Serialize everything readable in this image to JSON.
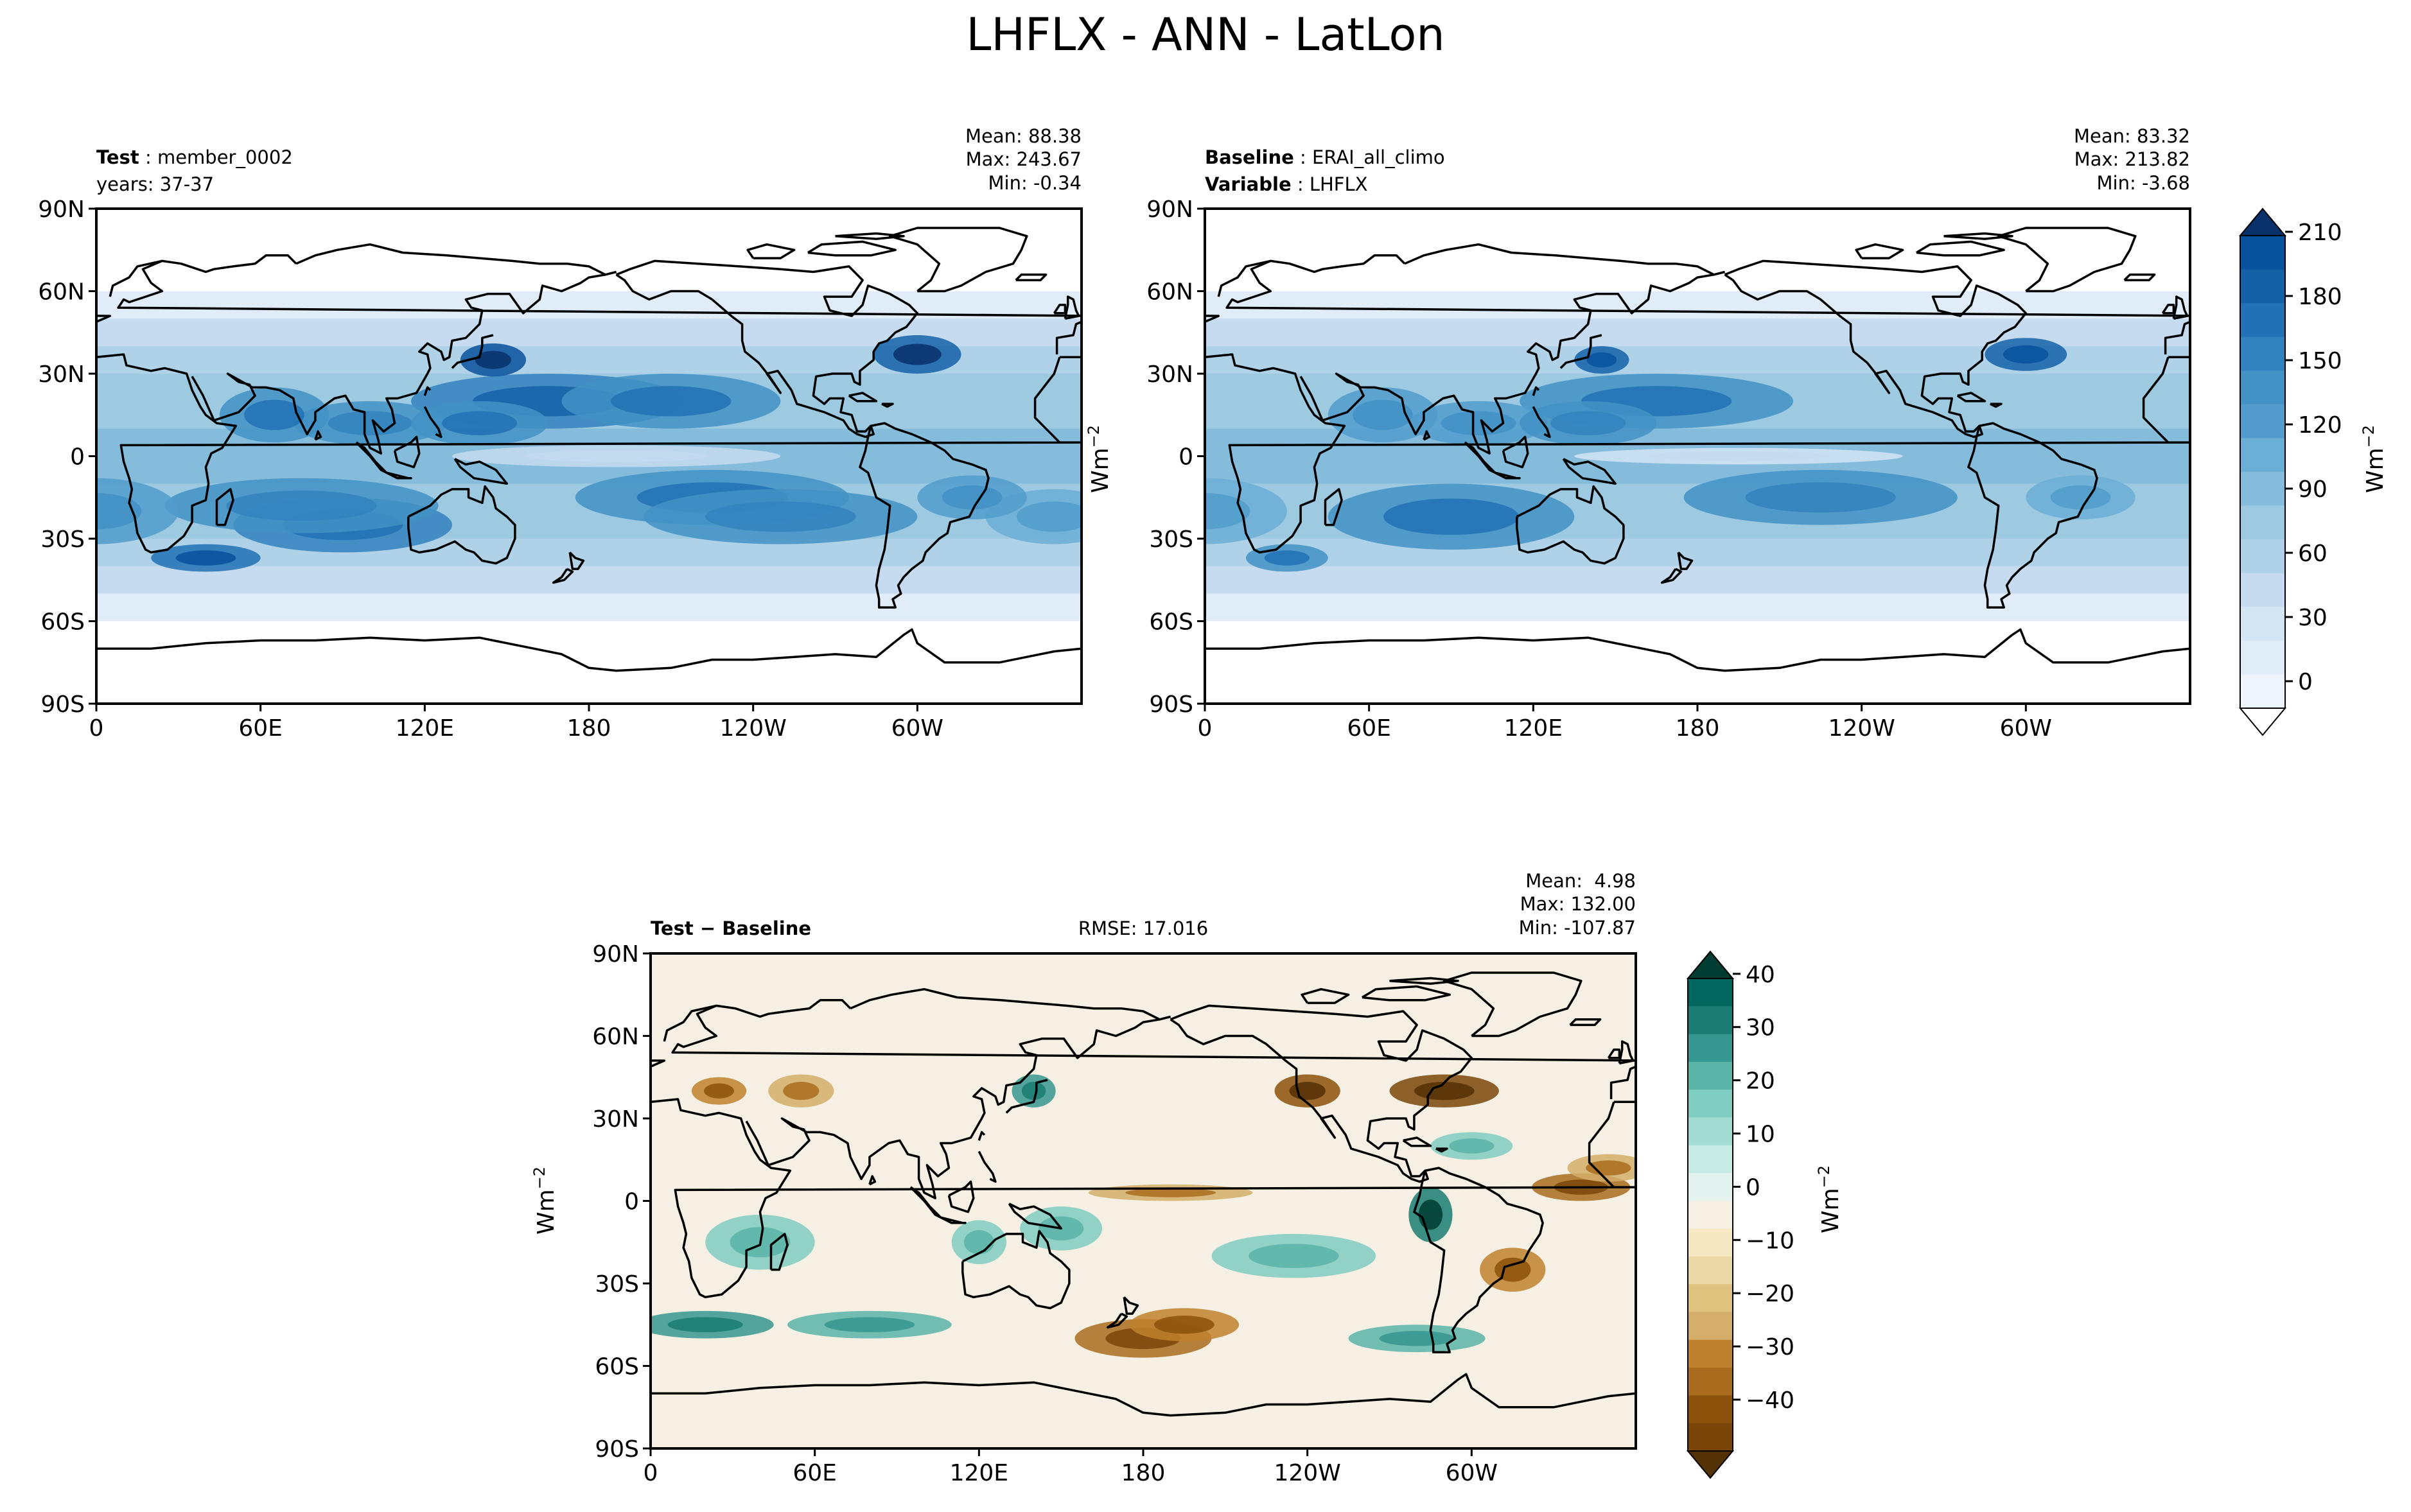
{
  "figure": {
    "title": "LHFLX - ANN - LatLon"
  },
  "colors": {
    "test_cmap": [
      "#ffffff",
      "#eef5fc",
      "#e0ecf8",
      "#d4e5f4",
      "#c6dbef",
      "#b0d2e8",
      "#9ecae1",
      "#85bcdc",
      "#6baed6",
      "#519ccc",
      "#4292c6",
      "#3282be",
      "#2171b5",
      "#1461a8",
      "#08519c",
      "#08306b"
    ],
    "diff_cmap": [
      "#543005",
      "#7a4508",
      "#8c510a",
      "#a96c1f",
      "#bf812d",
      "#d4ae6a",
      "#dfc27d",
      "#ecd9a8",
      "#f6e8c3",
      "#f5f0e3",
      "#e3f2ef",
      "#c7eae5",
      "#a3dcd2",
      "#80cdc1",
      "#5ab4a8",
      "#35978f",
      "#1a7c72",
      "#01665e",
      "#003c30"
    ],
    "coast": "#000000",
    "land_test": "#e8f1fa"
  },
  "panels": {
    "test": {
      "label_bold": "Test",
      "label_value": "member_0002",
      "line2": "years: 37-37",
      "stats": [
        "Mean: 88.38",
        "Max: 243.67",
        "Min: -0.34"
      ]
    },
    "baseline": {
      "label_bold": "Baseline",
      "label_value": "ERAI_all_climo",
      "line2_bold": "Variable",
      "line2_value": "LHFLX",
      "stats": [
        "Mean: 83.32",
        "Max: 213.82",
        "Min: -3.68"
      ],
      "ylabel": "Wm",
      "ylabel_sup": "−2"
    },
    "diff": {
      "label": "Test − Baseline",
      "rmse": "RMSE: 17.016",
      "stats": [
        "Mean:  4.98",
        "Max: 132.00",
        "Min: -107.87"
      ],
      "ylabel": "Wm",
      "ylabel_sup": "−2"
    }
  },
  "axes": {
    "lat_ticks": [
      "90N",
      "60N",
      "30N",
      "0",
      "30S",
      "60S",
      "90S"
    ],
    "lon_ticks": [
      "0",
      "60E",
      "120E",
      "180",
      "120W",
      "60W"
    ]
  },
  "colorbars": {
    "test": {
      "label": "Wm",
      "label_sup": "−2",
      "ticks": [
        "0",
        "30",
        "60",
        "90",
        "120",
        "150",
        "180",
        "210"
      ]
    },
    "diff": {
      "label": "Wm",
      "label_sup": "−2",
      "ticks": [
        "−40",
        "−30",
        "−20",
        "−10",
        "0",
        "10",
        "20",
        "30",
        "40"
      ]
    }
  },
  "chart_data": [
    {
      "type": "heatmap",
      "title": "Test: member_0002 (years: 37-37)",
      "variable": "LHFLX",
      "units": "Wm^-2",
      "xlim": [
        0,
        360
      ],
      "ylim": [
        -90,
        90
      ],
      "colorbar_range": [
        0,
        210
      ],
      "stats": {
        "mean": 88.38,
        "max": 243.67,
        "min": -0.34
      }
    },
    {
      "type": "heatmap",
      "title": "Baseline: ERAI_all_climo",
      "variable": "LHFLX",
      "units": "Wm^-2",
      "xlim": [
        0,
        360
      ],
      "ylim": [
        -90,
        90
      ],
      "colorbar_range": [
        0,
        210
      ],
      "stats": {
        "mean": 83.32,
        "max": 213.82,
        "min": -3.68
      }
    },
    {
      "type": "heatmap",
      "title": "Test − Baseline",
      "variable": "LHFLX",
      "units": "Wm^-2",
      "xlim": [
        0,
        360
      ],
      "ylim": [
        -90,
        90
      ],
      "colorbar_range": [
        -45,
        45
      ],
      "stats": {
        "mean": 4.98,
        "max": 132.0,
        "min": -107.87,
        "rmse": 17.016
      }
    }
  ]
}
